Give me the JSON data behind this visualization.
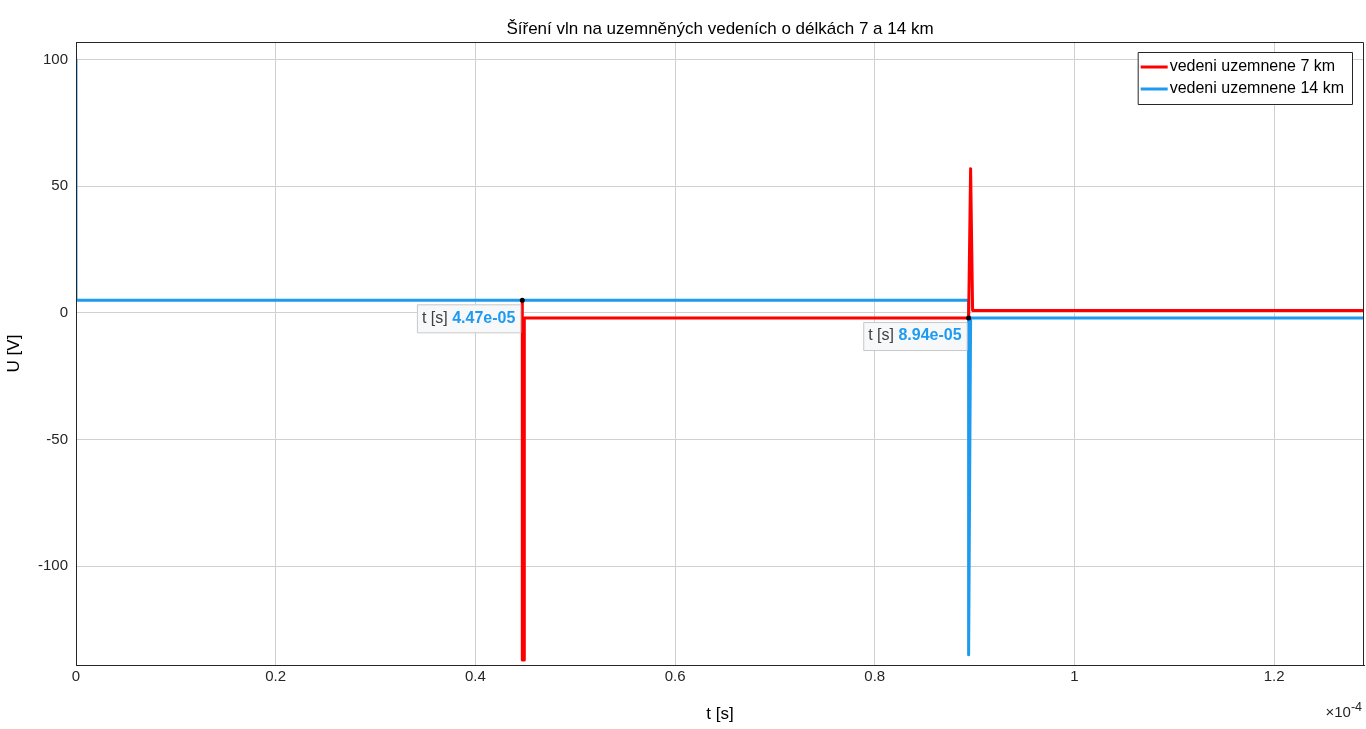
{
  "chart_data": {
    "type": "line",
    "title": "Šíření vln na uzemněných vedeních o délkách 7 a 14 km",
    "xlabel": "t [s]",
    "ylabel": "U [V]",
    "xlim": [
      0,
      1.29
    ],
    "xticks": [
      0,
      0.2,
      0.4,
      0.6,
      0.8,
      1,
      1.2
    ],
    "ylim": [
      -139,
      107
    ],
    "yticks": [
      -100,
      -50,
      0,
      50,
      100
    ],
    "series": [
      {
        "name": "vedeni uzemnene 7 km",
        "color": "#ff0000",
        "x": [
          0.447,
          0.447,
          0.449,
          0.449,
          0.894,
          0.896,
          0.898,
          1.29
        ],
        "values": [
          5,
          -137,
          -137,
          -2,
          -2,
          57,
          1,
          1
        ]
      },
      {
        "name": "vedeni uzemnene 14 km",
        "color": "#1e9bf0",
        "x": [
          0,
          0,
          0.894,
          0.894,
          0.896,
          1.29
        ],
        "values": [
          100,
          5,
          5,
          -135,
          -2,
          -2
        ]
      }
    ],
    "annotations": [
      {
        "text": "t [s] 4.47e-05",
        "x": 0.447,
        "y": 5
      },
      {
        "text": "t [s] 8.94e-05",
        "x": 0.894,
        "y": -2
      },
      "×10$^{-4}$"
    ],
    "grid": true,
    "legend": "top right",
    "marker": "none",
    "line_style": "solid"
  }
}
